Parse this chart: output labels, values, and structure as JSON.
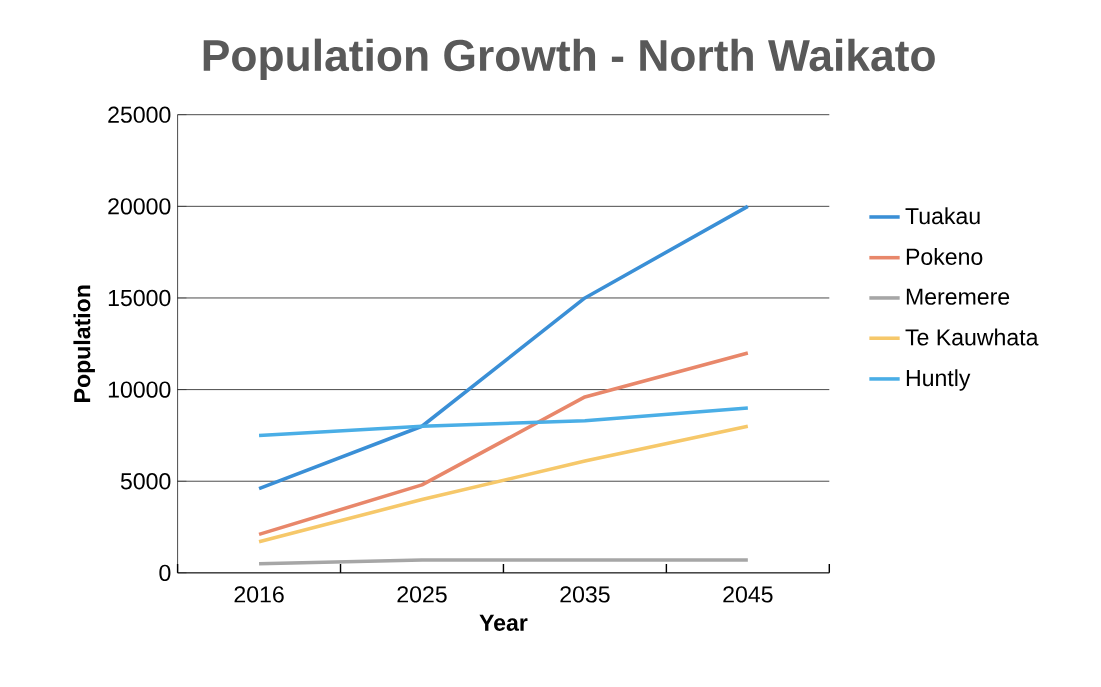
{
  "chart_data": {
    "type": "line",
    "title": "Population Growth - North Waikato",
    "xlabel": "Year",
    "ylabel": "Population",
    "categories": [
      "2016",
      "2025",
      "2035",
      "2045"
    ],
    "series": [
      {
        "name": "Tuakau",
        "color": "#3a8fd6",
        "values": [
          4600,
          8000,
          15000,
          20000
        ]
      },
      {
        "name": "Pokeno",
        "color": "#e8876a",
        "values": [
          2100,
          4800,
          9600,
          12000
        ]
      },
      {
        "name": "Meremere",
        "color": "#a6a6a6",
        "values": [
          500,
          700,
          700,
          700
        ]
      },
      {
        "name": "Te Kauwhata",
        "color": "#f6c86a",
        "values": [
          1700,
          4000,
          6100,
          8000
        ]
      },
      {
        "name": "Huntly",
        "color": "#4aaee6",
        "values": [
          7500,
          8000,
          8300,
          9000
        ]
      }
    ],
    "ylim": [
      0,
      25000
    ],
    "yticks": [
      0,
      5000,
      10000,
      15000,
      20000,
      25000
    ],
    "grid": "y",
    "legend": "right"
  }
}
